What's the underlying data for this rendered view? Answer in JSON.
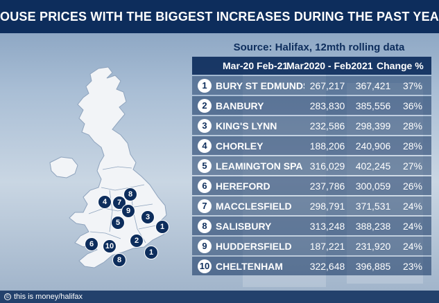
{
  "title": "HOUSE PRICES WITH THE BIGGEST INCREASES DURING THE PAST YEAR",
  "source": "Source: Halifax, 12mth rolling data",
  "credit": "this is money/halifax",
  "colors": {
    "navy": "#0d2d5c",
    "white": "#ffffff"
  },
  "chart_data": {
    "type": "table",
    "columns": [
      "Mar-20 Feb-21",
      "Mar2020 - Feb2021",
      "Change %"
    ],
    "rows": [
      {
        "rank": "1",
        "town": "BURY ST EDMUNDS",
        "mar20feb21": "267,217",
        "mar2020feb2021": "367,421",
        "change": "37%"
      },
      {
        "rank": "2",
        "town": "BANBURY",
        "mar20feb21": "283,830",
        "mar2020feb2021": "385,556",
        "change": "36%"
      },
      {
        "rank": "3",
        "town": "KING'S LYNN",
        "mar20feb21": "232,586",
        "mar2020feb2021": "298,399",
        "change": "28%"
      },
      {
        "rank": "4",
        "town": "CHORLEY",
        "mar20feb21": "188,206",
        "mar2020feb2021": "240,906",
        "change": "28%"
      },
      {
        "rank": "5",
        "town": "LEAMINGTON SPA",
        "mar20feb21": "316,029",
        "mar2020feb2021": "402,245",
        "change": "27%"
      },
      {
        "rank": "6",
        "town": "HEREFORD",
        "mar20feb21": "237,786",
        "mar2020feb2021": "300,059",
        "change": "26%"
      },
      {
        "rank": "7",
        "town": "MACCLESFIELD",
        "mar20feb21": "298,791",
        "mar2020feb2021": "371,531",
        "change": "24%"
      },
      {
        "rank": "8",
        "town": "SALISBURY",
        "mar20feb21": "313,248",
        "mar2020feb2021": "388,238",
        "change": "24%"
      },
      {
        "rank": "9",
        "town": "HUDDERSFIELD",
        "mar20feb21": "187,221",
        "mar2020feb2021": "231,920",
        "change": "24%"
      },
      {
        "rank": "10",
        "town": "CHELTENHAM",
        "mar20feb21": "322,648",
        "mar2020feb2021": "396,885",
        "change": "23%"
      }
    ]
  },
  "map": {
    "markers": [
      {
        "label": "8"
      },
      {
        "label": "4"
      },
      {
        "label": "7"
      },
      {
        "label": "9"
      },
      {
        "label": "5"
      },
      {
        "label": "3"
      },
      {
        "label": "1"
      },
      {
        "label": "2"
      },
      {
        "label": "6"
      },
      {
        "label": "10"
      },
      {
        "label": "1"
      },
      {
        "label": "8"
      }
    ]
  }
}
